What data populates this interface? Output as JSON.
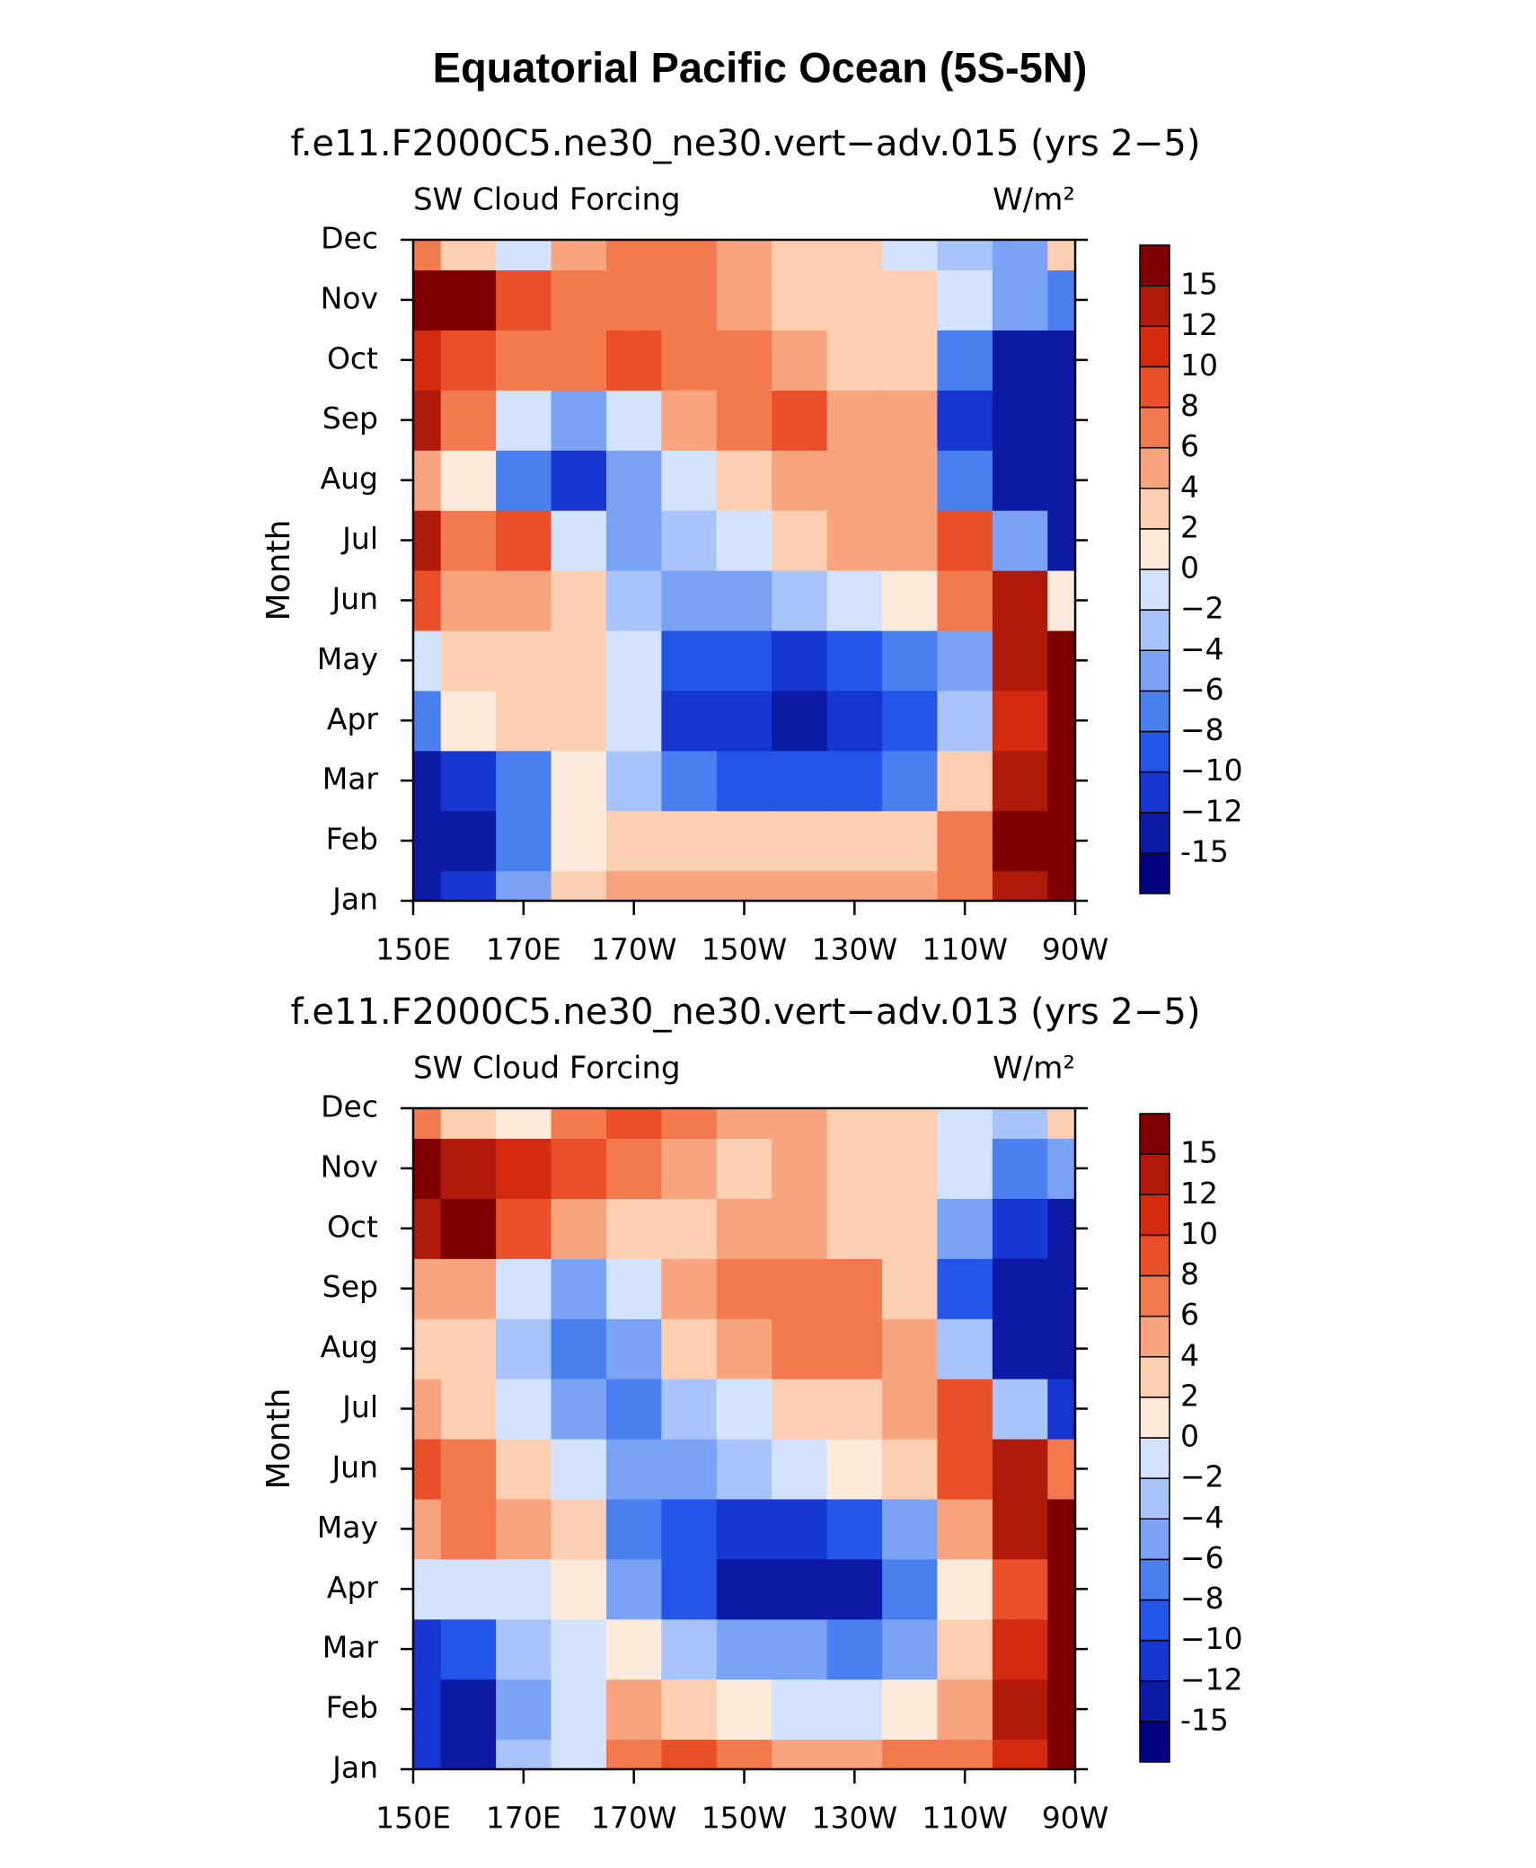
{
  "title": "Equatorial Pacific Ocean (5S-5N)",
  "chart_data": [
    {
      "type": "contour",
      "title": "f.e11.F2000C5.ne30_ne30.vert−adv.015 (yrs 2−5)",
      "left_label": "SW Cloud Forcing",
      "right_label": "W/m²",
      "ylabel": "Month",
      "categories": [
        "Jan",
        "Feb",
        "Mar",
        "Apr",
        "May",
        "Jun",
        "Jul",
        "Aug",
        "Sep",
        "Oct",
        "Nov",
        "Dec"
      ],
      "x": [
        150,
        160,
        170,
        180,
        190,
        200,
        210,
        220,
        230,
        240,
        250,
        260,
        270
      ],
      "xlim": [
        150,
        270
      ],
      "xticks": [
        {
          "value": 150,
          "label": "150E"
        },
        {
          "value": 170,
          "label": "170E"
        },
        {
          "value": 190,
          "label": "170W"
        },
        {
          "value": 210,
          "label": "150W"
        },
        {
          "value": 230,
          "label": "130W"
        },
        {
          "value": 250,
          "label": "110W"
        },
        {
          "value": 270,
          "label": "90W"
        }
      ],
      "z": [
        [
          -15,
          -12,
          -6,
          2,
          4,
          4,
          4,
          4,
          4,
          4,
          6,
          12,
          15
        ],
        [
          -15,
          -15,
          -8,
          0,
          2,
          2,
          2,
          2,
          2,
          2,
          6,
          15,
          15
        ],
        [
          -15,
          -12,
          -8,
          0,
          -4,
          -8,
          -10,
          -10,
          -10,
          -8,
          2,
          12,
          15
        ],
        [
          -8,
          0,
          2,
          2,
          -2,
          -12,
          -12,
          -15,
          -12,
          -10,
          -4,
          10,
          15
        ],
        [
          -2,
          2,
          2,
          2,
          -2,
          -10,
          -10,
          -12,
          -10,
          -8,
          -6,
          12,
          15
        ],
        [
          8,
          4,
          4,
          2,
          -4,
          -6,
          -6,
          -4,
          -2,
          0,
          6,
          12,
          0
        ],
        [
          12,
          6,
          8,
          -2,
          -6,
          -4,
          -2,
          2,
          4,
          4,
          8,
          -6,
          -15
        ],
        [
          4,
          0,
          -8,
          -12,
          -6,
          -2,
          2,
          4,
          4,
          4,
          -8,
          -15,
          -15
        ],
        [
          12,
          6,
          -2,
          -6,
          -2,
          4,
          6,
          8,
          4,
          4,
          -12,
          -15,
          -15
        ],
        [
          10,
          8,
          6,
          6,
          8,
          6,
          6,
          4,
          2,
          2,
          -8,
          -15,
          -15
        ],
        [
          15,
          15,
          8,
          6,
          6,
          6,
          4,
          2,
          2,
          2,
          -2,
          -6,
          -8
        ],
        [
          6,
          2,
          -2,
          4,
          6,
          6,
          4,
          2,
          2,
          -2,
          -4,
          -6,
          2
        ]
      ],
      "levels": [
        -15,
        {
          "value": -12,
          "label": "−12"
        },
        {
          "value": -10,
          "label": "−10"
        },
        {
          "value": -8,
          "label": "−8"
        },
        {
          "value": -6,
          "label": "−6"
        },
        {
          "value": -4,
          "label": "−4"
        },
        {
          "value": -2,
          "label": "−2"
        },
        0,
        2,
        4,
        6,
        8,
        10,
        12,
        15
      ],
      "colors": [
        "#000080",
        "#0d1aa5",
        "#1536d0",
        "#2255e8",
        "#4a7ff0",
        "#7ba3f5",
        "#a8c4fa",
        "#d4e3fd",
        "#fdeadb",
        "#fbcfb0",
        "#f8a57f",
        "#f37a4e",
        "#e9502a",
        "#d42b10",
        "#b01a0a",
        "#7f0000"
      ]
    },
    {
      "type": "contour",
      "title": "f.e11.F2000C5.ne30_ne30.vert−adv.013 (yrs 2−5)",
      "left_label": "SW Cloud Forcing",
      "right_label": "W/m²",
      "ylabel": "Month",
      "categories": [
        "Jan",
        "Feb",
        "Mar",
        "Apr",
        "May",
        "Jun",
        "Jul",
        "Aug",
        "Sep",
        "Oct",
        "Nov",
        "Dec"
      ],
      "x": [
        150,
        160,
        170,
        180,
        190,
        200,
        210,
        220,
        230,
        240,
        250,
        260,
        270
      ],
      "xlim": [
        150,
        270
      ],
      "xticks": [
        {
          "value": 150,
          "label": "150E"
        },
        {
          "value": 170,
          "label": "170E"
        },
        {
          "value": 190,
          "label": "170W"
        },
        {
          "value": 210,
          "label": "150W"
        },
        {
          "value": 230,
          "label": "130W"
        },
        {
          "value": 250,
          "label": "110W"
        },
        {
          "value": 270,
          "label": "90W"
        }
      ],
      "z": [
        [
          -12,
          -15,
          -4,
          -2,
          6,
          8,
          6,
          4,
          4,
          6,
          6,
          10,
          15
        ],
        [
          -12,
          -15,
          -6,
          -2,
          4,
          2,
          0,
          -2,
          -2,
          0,
          4,
          12,
          15
        ],
        [
          -12,
          -10,
          -4,
          -2,
          0,
          -4,
          -6,
          -6,
          -8,
          -6,
          2,
          10,
          15
        ],
        [
          -2,
          -2,
          -2,
          0,
          -6,
          -10,
          -15,
          -15,
          -15,
          -8,
          0,
          8,
          15
        ],
        [
          4,
          6,
          4,
          2,
          -8,
          -10,
          -12,
          -12,
          -10,
          -6,
          4,
          12,
          15
        ],
        [
          8,
          6,
          2,
          -2,
          -6,
          -6,
          -4,
          -2,
          0,
          2,
          8,
          12,
          6
        ],
        [
          4,
          2,
          -2,
          -6,
          -8,
          -4,
          -2,
          2,
          2,
          4,
          8,
          -4,
          -12
        ],
        [
          2,
          2,
          -4,
          -8,
          -6,
          2,
          4,
          6,
          6,
          4,
          -4,
          -15,
          -15
        ],
        [
          4,
          4,
          -2,
          -6,
          -2,
          4,
          6,
          6,
          6,
          2,
          -10,
          -15,
          -15
        ],
        [
          12,
          15,
          8,
          4,
          2,
          2,
          4,
          4,
          2,
          2,
          -6,
          -12,
          -15
        ],
        [
          15,
          12,
          10,
          8,
          6,
          4,
          2,
          4,
          2,
          2,
          -2,
          -8,
          -6
        ],
        [
          6,
          2,
          0,
          6,
          8,
          6,
          4,
          4,
          2,
          2,
          -2,
          -4,
          2
        ]
      ],
      "levels": [
        -15,
        {
          "value": -12,
          "label": "−12"
        },
        {
          "value": -10,
          "label": "−10"
        },
        {
          "value": -8,
          "label": "−8"
        },
        {
          "value": -6,
          "label": "−6"
        },
        {
          "value": -4,
          "label": "−4"
        },
        {
          "value": -2,
          "label": "−2"
        },
        0,
        2,
        4,
        6,
        8,
        10,
        12,
        15
      ],
      "colors": [
        "#000080",
        "#0d1aa5",
        "#1536d0",
        "#2255e8",
        "#4a7ff0",
        "#7ba3f5",
        "#a8c4fa",
        "#d4e3fd",
        "#fdeadb",
        "#fbcfb0",
        "#f8a57f",
        "#f37a4e",
        "#e9502a",
        "#d42b10",
        "#b01a0a",
        "#7f0000"
      ]
    }
  ]
}
